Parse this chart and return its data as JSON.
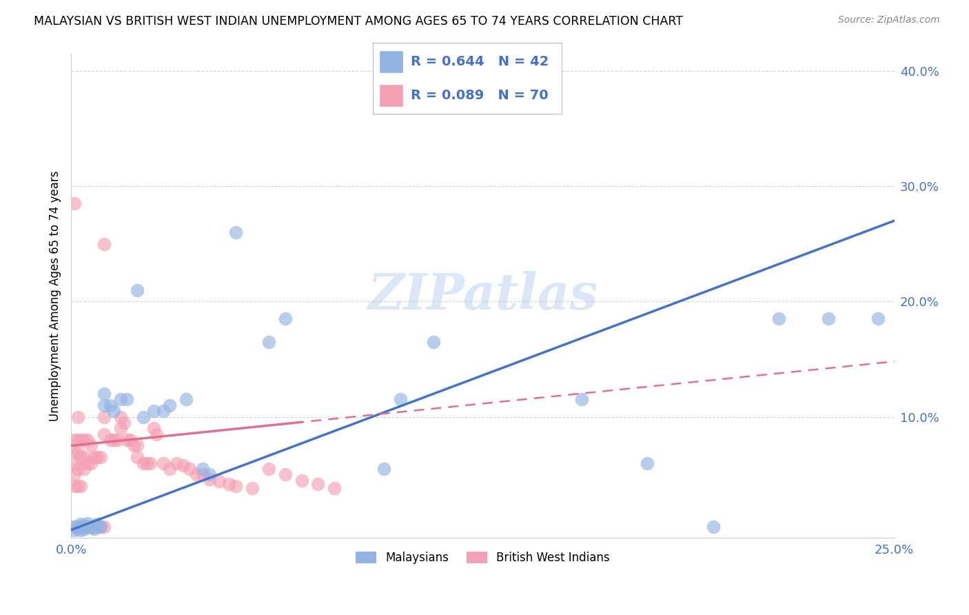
{
  "title": "MALAYSIAN VS BRITISH WEST INDIAN UNEMPLOYMENT AMONG AGES 65 TO 74 YEARS CORRELATION CHART",
  "source": "Source: ZipAtlas.com",
  "ylabel": "Unemployment Among Ages 65 to 74 years",
  "xlim": [
    0.0,
    0.25
  ],
  "ylim": [
    -0.005,
    0.415
  ],
  "xticks": [
    0.0,
    0.05,
    0.1,
    0.15,
    0.2,
    0.25
  ],
  "yticks": [
    0.1,
    0.2,
    0.3,
    0.4
  ],
  "xtick_labels": [
    "0.0%",
    "",
    "",
    "",
    "",
    "25.0%"
  ],
  "ytick_labels": [
    "10.0%",
    "20.0%",
    "30.0%",
    "40.0%"
  ],
  "malaysian_R": 0.644,
  "malaysian_N": 42,
  "bwi_R": 0.089,
  "bwi_N": 70,
  "malaysian_color": "#92b4e3",
  "bwi_color": "#f4a0b5",
  "trendline_malaysian_color": "#4472c4",
  "trendline_bwi_color": "#e07090",
  "background_color": "#ffffff",
  "grid_color": "#c8c8c8",
  "watermark": "ZIPatlas",
  "mal_trend_x0": 0.0,
  "mal_trend_y0": 0.002,
  "mal_trend_x1": 0.25,
  "mal_trend_y1": 0.27,
  "bwi_trend_x0": 0.0,
  "bwi_trend_y0": 0.075,
  "bwi_trend_x1": 0.25,
  "bwi_trend_y1": 0.148,
  "malaysian_x": [
    0.001,
    0.001,
    0.002,
    0.002,
    0.003,
    0.003,
    0.003,
    0.004,
    0.004,
    0.005,
    0.005,
    0.006,
    0.007,
    0.007,
    0.008,
    0.009,
    0.01,
    0.01,
    0.012,
    0.013,
    0.015,
    0.017,
    0.02,
    0.022,
    0.025,
    0.028,
    0.03,
    0.035,
    0.04,
    0.042,
    0.05,
    0.06,
    0.065,
    0.095,
    0.1,
    0.11,
    0.155,
    0.175,
    0.195,
    0.215,
    0.23,
    0.245
  ],
  "malaysian_y": [
    0.005,
    0.002,
    0.005,
    0.003,
    0.004,
    0.007,
    0.002,
    0.006,
    0.003,
    0.005,
    0.008,
    0.004,
    0.006,
    0.003,
    0.007,
    0.005,
    0.12,
    0.11,
    0.11,
    0.105,
    0.115,
    0.115,
    0.21,
    0.1,
    0.105,
    0.105,
    0.11,
    0.115,
    0.055,
    0.05,
    0.26,
    0.165,
    0.185,
    0.055,
    0.115,
    0.165,
    0.115,
    0.06,
    0.005,
    0.185,
    0.185,
    0.185
  ],
  "bwi_x": [
    0.001,
    0.001,
    0.001,
    0.001,
    0.001,
    0.001,
    0.001,
    0.002,
    0.002,
    0.002,
    0.002,
    0.002,
    0.002,
    0.003,
    0.003,
    0.003,
    0.003,
    0.004,
    0.004,
    0.004,
    0.004,
    0.005,
    0.005,
    0.005,
    0.006,
    0.006,
    0.006,
    0.007,
    0.007,
    0.008,
    0.008,
    0.009,
    0.009,
    0.01,
    0.01,
    0.01,
    0.012,
    0.013,
    0.014,
    0.015,
    0.015,
    0.016,
    0.017,
    0.018,
    0.019,
    0.02,
    0.02,
    0.022,
    0.023,
    0.024,
    0.025,
    0.026,
    0.028,
    0.03,
    0.032,
    0.034,
    0.036,
    0.038,
    0.04,
    0.042,
    0.045,
    0.048,
    0.05,
    0.055,
    0.06,
    0.065,
    0.07,
    0.075,
    0.08,
    0.01
  ],
  "bwi_y": [
    0.285,
    0.08,
    0.07,
    0.06,
    0.05,
    0.04,
    0.005,
    0.1,
    0.08,
    0.07,
    0.055,
    0.04,
    0.005,
    0.08,
    0.065,
    0.04,
    0.005,
    0.08,
    0.065,
    0.055,
    0.005,
    0.08,
    0.06,
    0.005,
    0.075,
    0.06,
    0.005,
    0.065,
    0.005,
    0.065,
    0.005,
    0.065,
    0.005,
    0.1,
    0.085,
    0.005,
    0.08,
    0.08,
    0.08,
    0.09,
    0.1,
    0.095,
    0.08,
    0.08,
    0.075,
    0.075,
    0.065,
    0.06,
    0.06,
    0.06,
    0.09,
    0.085,
    0.06,
    0.055,
    0.06,
    0.058,
    0.055,
    0.05,
    0.05,
    0.046,
    0.044,
    0.042,
    0.04,
    0.038,
    0.055,
    0.05,
    0.045,
    0.042,
    0.038,
    0.25
  ]
}
